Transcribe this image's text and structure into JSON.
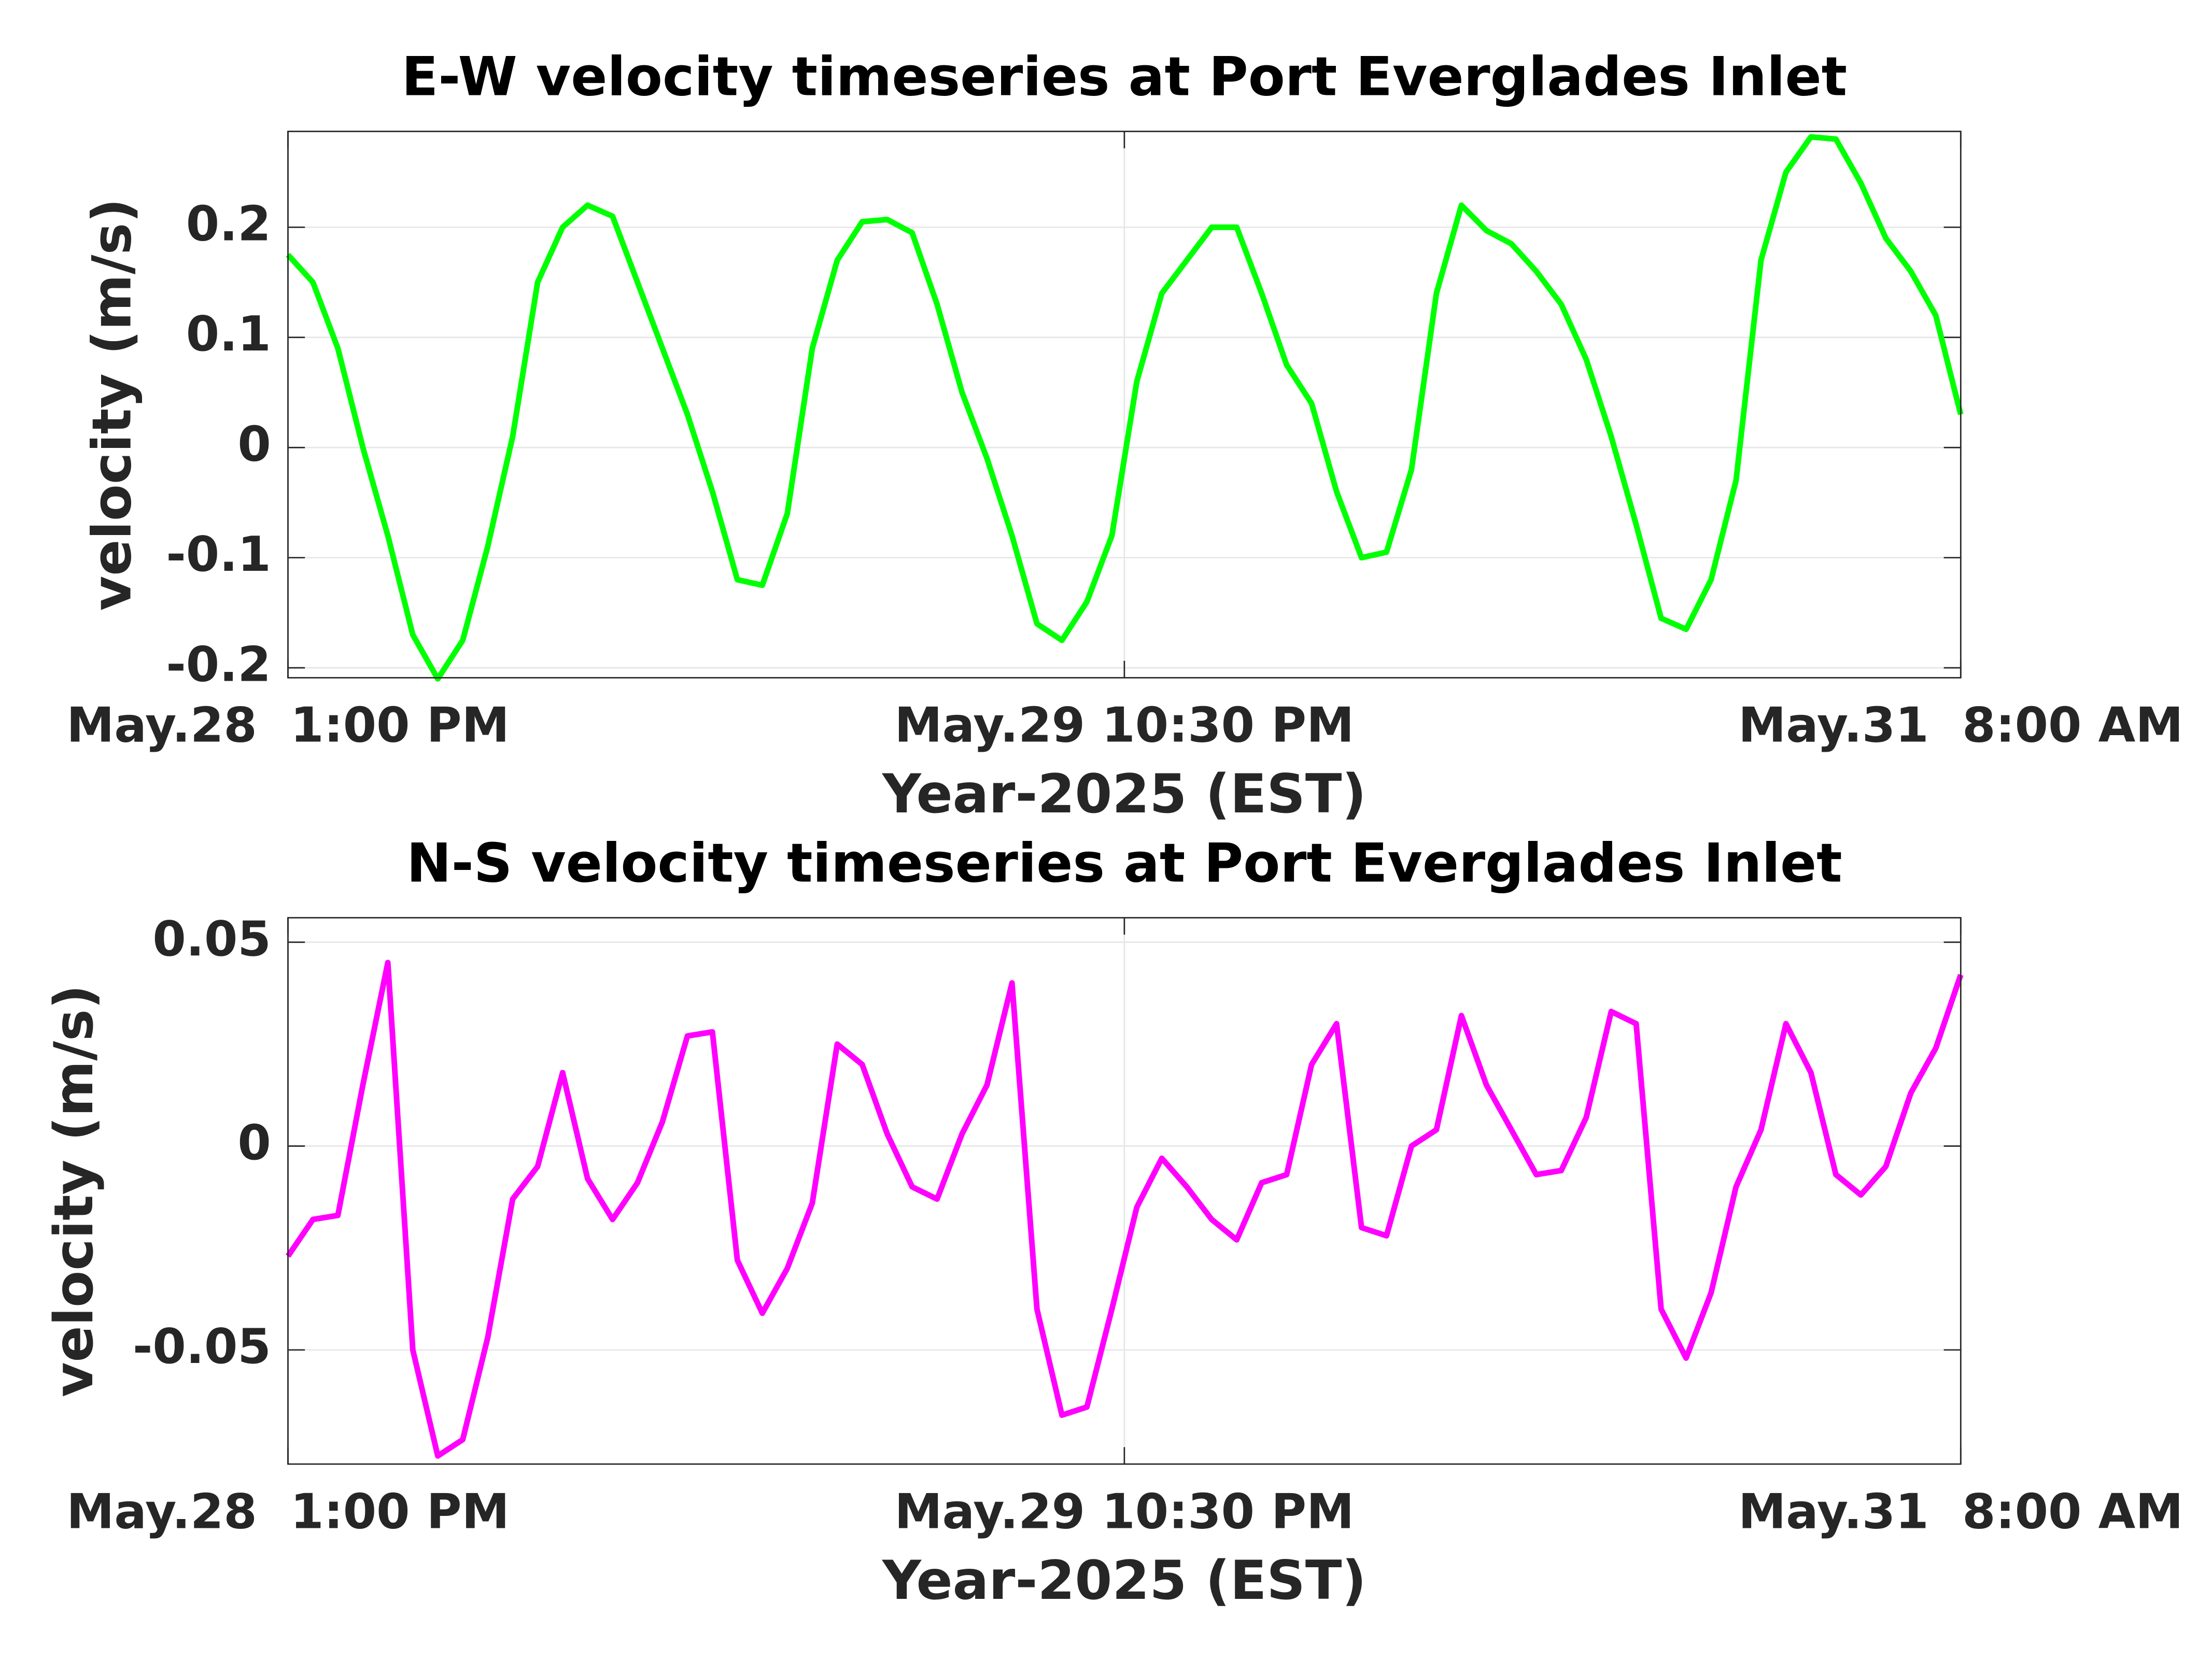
{
  "chart_data": [
    {
      "type": "line",
      "title": "E-W velocity timeseries at Port Everglades Inlet",
      "xlabel": "Year-2025 (EST)",
      "ylabel": "velocity (m/s)",
      "x": [
        "2025-05-28T13:00",
        "2025-05-28T14:00",
        "2025-05-28T15:00",
        "2025-05-28T16:00",
        "2025-05-28T17:00",
        "2025-05-28T18:00",
        "2025-05-28T19:00",
        "2025-05-28T20:00",
        "2025-05-28T21:00",
        "2025-05-28T22:00",
        "2025-05-28T23:00",
        "2025-05-29T00:00",
        "2025-05-29T01:00",
        "2025-05-29T02:00",
        "2025-05-29T03:00",
        "2025-05-29T04:00",
        "2025-05-29T05:00",
        "2025-05-29T06:00",
        "2025-05-29T07:00",
        "2025-05-29T08:00",
        "2025-05-29T09:00",
        "2025-05-29T10:00",
        "2025-05-29T11:00",
        "2025-05-29T12:00",
        "2025-05-29T13:00",
        "2025-05-29T14:00",
        "2025-05-29T15:00",
        "2025-05-29T16:00",
        "2025-05-29T17:00",
        "2025-05-29T18:00",
        "2025-05-29T19:00",
        "2025-05-29T20:00",
        "2025-05-29T21:00",
        "2025-05-29T22:00",
        "2025-05-29T23:00",
        "2025-05-30T00:00",
        "2025-05-30T01:00",
        "2025-05-30T02:00",
        "2025-05-30T03:00",
        "2025-05-30T04:00",
        "2025-05-30T05:00",
        "2025-05-30T06:00",
        "2025-05-30T07:00",
        "2025-05-30T08:00",
        "2025-05-30T09:00",
        "2025-05-30T10:00",
        "2025-05-30T11:00",
        "2025-05-30T12:00",
        "2025-05-30T13:00",
        "2025-05-30T14:00",
        "2025-05-30T15:00",
        "2025-05-30T16:00",
        "2025-05-30T17:00",
        "2025-05-30T18:00",
        "2025-05-30T19:00",
        "2025-05-30T20:00",
        "2025-05-30T21:00",
        "2025-05-30T22:00",
        "2025-05-30T23:00",
        "2025-05-31T00:00",
        "2025-05-31T01:00",
        "2025-05-31T02:00",
        "2025-05-31T03:00",
        "2025-05-31T04:00",
        "2025-05-31T05:00",
        "2025-05-31T06:00",
        "2025-05-31T07:00",
        "2025-05-31T08:00"
      ],
      "series": [
        {
          "color": "#00ff00",
          "values": [
            0.175,
            0.15,
            0.09,
            0.0,
            -0.08,
            -0.17,
            -0.21,
            -0.175,
            -0.09,
            0.01,
            0.15,
            0.2,
            0.22,
            0.21,
            0.15,
            0.09,
            0.03,
            -0.04,
            -0.12,
            -0.125,
            -0.06,
            0.09,
            0.17,
            0.205,
            0.207,
            0.195,
            0.13,
            0.05,
            -0.01,
            -0.08,
            -0.16,
            -0.175,
            -0.14,
            -0.08,
            0.06,
            0.14,
            0.17,
            0.2,
            0.2,
            0.14,
            0.075,
            0.04,
            -0.04,
            -0.1,
            -0.095,
            -0.02,
            0.14,
            0.22,
            0.197,
            0.185,
            0.16,
            0.13,
            0.08,
            0.01,
            -0.07,
            -0.155,
            -0.165,
            -0.12,
            -0.03,
            0.17,
            0.25,
            0.282,
            0.28,
            0.24,
            0.19,
            0.16,
            0.12,
            0.03
          ]
        }
      ],
      "xlim": [
        "2025-05-28T13:00",
        "2025-05-31T08:00"
      ],
      "xticks": [
        {
          "value": "2025-05-28T13:00",
          "label": "May.28  1:00 PM"
        },
        {
          "value": "2025-05-29T22:30",
          "label": "May.29 10:30 PM"
        },
        {
          "value": "2025-05-31T08:00",
          "label": "May.31  8:00 AM"
        }
      ],
      "ylim": [
        -0.209,
        0.287
      ],
      "yticks": [
        -0.2,
        -0.1,
        0,
        0.1,
        0.2
      ],
      "grid": true
    },
    {
      "type": "line",
      "title": "N-S velocity timeseries at Port Everglades Inlet",
      "xlabel": "Year-2025 (EST)",
      "ylabel": "velocity (m/s)",
      "x": [
        "2025-05-28T13:00",
        "2025-05-28T14:00",
        "2025-05-28T15:00",
        "2025-05-28T16:00",
        "2025-05-28T17:00",
        "2025-05-28T18:00",
        "2025-05-28T19:00",
        "2025-05-28T20:00",
        "2025-05-28T21:00",
        "2025-05-28T22:00",
        "2025-05-28T23:00",
        "2025-05-29T00:00",
        "2025-05-29T01:00",
        "2025-05-29T02:00",
        "2025-05-29T03:00",
        "2025-05-29T04:00",
        "2025-05-29T05:00",
        "2025-05-29T06:00",
        "2025-05-29T07:00",
        "2025-05-29T08:00",
        "2025-05-29T09:00",
        "2025-05-29T10:00",
        "2025-05-29T11:00",
        "2025-05-29T12:00",
        "2025-05-29T13:00",
        "2025-05-29T14:00",
        "2025-05-29T15:00",
        "2025-05-29T16:00",
        "2025-05-29T17:00",
        "2025-05-29T18:00",
        "2025-05-29T19:00",
        "2025-05-29T20:00",
        "2025-05-29T21:00",
        "2025-05-29T22:00",
        "2025-05-29T23:00",
        "2025-05-30T00:00",
        "2025-05-30T01:00",
        "2025-05-30T02:00",
        "2025-05-30T03:00",
        "2025-05-30T04:00",
        "2025-05-30T05:00",
        "2025-05-30T06:00",
        "2025-05-30T07:00",
        "2025-05-30T08:00",
        "2025-05-30T09:00",
        "2025-05-30T10:00",
        "2025-05-30T11:00",
        "2025-05-30T12:00",
        "2025-05-30T13:00",
        "2025-05-30T14:00",
        "2025-05-30T15:00",
        "2025-05-30T16:00",
        "2025-05-30T17:00",
        "2025-05-30T18:00",
        "2025-05-30T19:00",
        "2025-05-30T20:00",
        "2025-05-30T21:00",
        "2025-05-30T22:00",
        "2025-05-30T23:00",
        "2025-05-31T00:00",
        "2025-05-31T01:00",
        "2025-05-31T02:00",
        "2025-05-31T03:00",
        "2025-05-31T04:00",
        "2025-05-31T05:00",
        "2025-05-31T06:00",
        "2025-05-31T07:00",
        "2025-05-31T08:00"
      ],
      "series": [
        {
          "color": "#ff00ff",
          "values": [
            -0.027,
            -0.018,
            -0.017,
            0.015,
            0.045,
            -0.05,
            -0.076,
            -0.072,
            -0.047,
            -0.013,
            -0.005,
            0.018,
            -0.008,
            -0.018,
            -0.009,
            0.006,
            0.027,
            0.028,
            -0.028,
            -0.041,
            -0.03,
            -0.014,
            0.025,
            0.02,
            0.003,
            -0.01,
            -0.013,
            0.003,
            0.015,
            0.04,
            -0.04,
            -0.066,
            -0.064,
            -0.04,
            -0.015,
            -0.003,
            -0.01,
            -0.018,
            -0.023,
            -0.009,
            -0.007,
            0.02,
            0.03,
            -0.02,
            -0.022,
            0.0,
            0.004,
            0.032,
            0.015,
            0.004,
            -0.007,
            -0.006,
            0.007,
            0.033,
            0.03,
            -0.04,
            -0.052,
            -0.036,
            -0.01,
            0.004,
            0.03,
            0.018,
            -0.007,
            -0.012,
            -0.005,
            0.013,
            0.024,
            0.042
          ]
        }
      ],
      "xlim": [
        "2025-05-28T13:00",
        "2025-05-31T08:00"
      ],
      "xticks": [
        {
          "value": "2025-05-28T13:00",
          "label": "May.28  1:00 PM"
        },
        {
          "value": "2025-05-29T22:30",
          "label": "May.29 10:30 PM"
        },
        {
          "value": "2025-05-31T08:00",
          "label": "May.31  8:00 AM"
        }
      ],
      "ylim": [
        -0.078,
        0.056
      ],
      "yticks": [
        -0.05,
        0,
        0.05
      ],
      "grid": true
    }
  ]
}
